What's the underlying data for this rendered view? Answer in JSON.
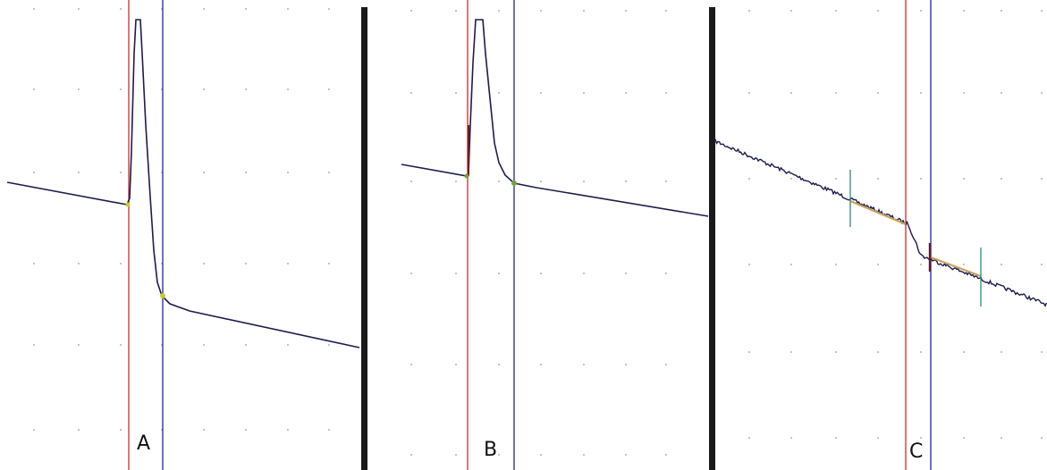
{
  "panels": [
    {
      "label": "A",
      "trace_color": "#1c1c4e",
      "cursor_a_color": "#d23a3a",
      "cursor_b_color": "#3434a8",
      "marker_color": "#c9c928"
    },
    {
      "label": "B",
      "trace_color": "#1c1c4e",
      "cursor_a_color": "#d23a3a",
      "cursor_b_color": "#3434a8",
      "marker_color": "#6fa53a"
    },
    {
      "label": "C",
      "trace_color": "#1c1c4e",
      "cursor_a_color": "#d23a3a",
      "cursor_b_color": "#3434a8",
      "fit_color": "#c9a25a",
      "tick_color": "#2e8a7a"
    }
  ],
  "colors": {
    "grid_dot": "#9a9a9a",
    "divider": "#1a1a1a",
    "background": "#ffffff"
  }
}
